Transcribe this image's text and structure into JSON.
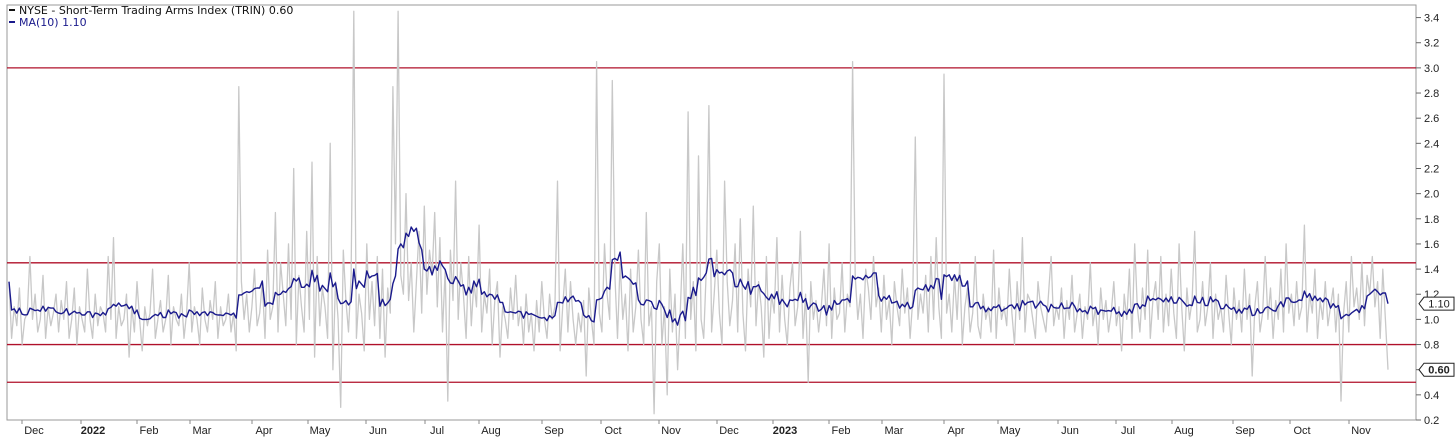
{
  "chart_data": {
    "type": "line",
    "title": "",
    "xlabel": "",
    "ylabel": "",
    "ylim": [
      0.2,
      3.5
    ],
    "y_ticks": [
      "0.2",
      "0.4",
      "0.6",
      "0.8",
      "1.0",
      "1.2",
      "1.4",
      "1.6",
      "1.8",
      "2.0",
      "2.2",
      "2.4",
      "2.6",
      "2.8",
      "3.0",
      "3.2",
      "3.4"
    ],
    "x_labels": [
      {
        "text": "Dec",
        "bold": false
      },
      {
        "text": "2022",
        "bold": true
      },
      {
        "text": "Feb",
        "bold": false
      },
      {
        "text": "Mar",
        "bold": false
      },
      {
        "text": "Apr",
        "bold": false
      },
      {
        "text": "May",
        "bold": false
      },
      {
        "text": "Jun",
        "bold": false
      },
      {
        "text": "Jul",
        "bold": false
      },
      {
        "text": "Aug",
        "bold": false
      },
      {
        "text": "Sep",
        "bold": false
      },
      {
        "text": "Oct",
        "bold": false
      },
      {
        "text": "Nov",
        "bold": false
      },
      {
        "text": "Dec",
        "bold": false
      },
      {
        "text": "2023",
        "bold": true
      },
      {
        "text": "Feb",
        "bold": false
      },
      {
        "text": "Mar",
        "bold": false
      },
      {
        "text": "Apr",
        "bold": false
      },
      {
        "text": "May",
        "bold": false
      },
      {
        "text": "Jun",
        "bold": false
      },
      {
        "text": "Jul",
        "bold": false
      },
      {
        "text": "Aug",
        "bold": false
      },
      {
        "text": "Sep",
        "bold": false
      },
      {
        "text": "Oct",
        "bold": false
      },
      {
        "text": "Nov",
        "bold": false
      }
    ],
    "reference_lines": [
      3.0,
      1.45,
      0.8,
      0.5
    ],
    "legend": [
      {
        "label": "NYSE - Short-Term Trading Arms Index (TRIN) 0.60",
        "color": "#999999"
      },
      {
        "label": "MA(10) 1.10",
        "color": "#1a1a8c"
      }
    ],
    "last_value_badges": [
      "1.10",
      "0.60"
    ],
    "series": [
      {
        "name": "NYSE - Short-Term Trading Arms Index (TRIN)",
        "color": "#c8c8c8",
        "values": [
          1.3,
          0.85,
          1.1,
          0.95,
          1.25,
          0.8,
          1.0,
          1.05,
          1.5,
          1.0,
          1.2,
          0.9,
          1.0,
          1.35,
          0.85,
          1.1,
          0.95,
          1.05,
          1.2,
          0.9,
          1.15,
          1.0,
          1.3,
          0.85,
          1.0,
          1.25,
          0.8,
          1.1,
          1.0,
          0.9,
          1.4,
          1.0,
          0.85,
          1.2,
          0.95,
          1.1,
          1.05,
          0.9,
          1.5,
          1.0,
          1.65,
          0.85,
          1.1,
          0.95,
          1.0,
          1.2,
          0.7,
          1.1,
          0.9,
          1.3,
          1.0,
          0.75,
          1.1,
          0.95,
          1.05,
          1.4,
          0.85,
          1.0,
          1.15,
          0.9,
          1.0,
          1.35,
          0.8,
          1.1,
          1.0,
          0.95,
          1.2,
          0.85,
          1.05,
          1.45,
          0.9,
          1.1,
          1.0,
          0.8,
          1.25,
          1.0,
          0.9,
          1.15,
          1.0,
          1.3,
          0.85,
          1.1,
          0.95,
          1.0,
          1.2,
          0.9,
          1.05,
          0.75,
          2.85,
          1.3,
          1.0,
          1.2,
          0.9,
          1.1,
          1.4,
          0.95,
          1.05,
          1.3,
          0.85,
          1.55,
          1.0,
          1.1,
          1.85,
          0.9,
          1.45,
          1.2,
          0.95,
          1.6,
          1.0,
          2.2,
          0.8,
          1.35,
          1.1,
          0.9,
          1.7,
          1.0,
          2.25,
          0.7,
          1.5,
          0.95,
          1.25,
          1.1,
          0.85,
          2.4,
          0.6,
          1.3,
          1.0,
          0.3,
          1.55,
          1.15,
          0.9,
          1.35,
          3.45,
          0.85,
          1.2,
          1.05,
          0.75,
          1.6,
          1.0,
          1.3,
          0.95,
          1.5,
          0.85,
          1.4,
          0.7,
          1.25,
          1.05,
          2.85,
          1.6,
          3.45,
          1.35,
          1.2,
          2.0,
          1.15,
          1.45,
          0.9,
          1.3,
          1.7,
          1.05,
          1.9,
          1.2,
          1.55,
          1.35,
          1.85,
          1.1,
          1.65,
          0.9,
          1.4,
          0.35,
          1.55,
          1.15,
          2.1,
          1.0,
          1.45,
          1.2,
          0.85,
          1.5,
          0.95,
          1.3,
          1.1,
          1.75,
          0.9,
          1.2,
          1.05,
          1.4,
          0.8,
          1.15,
          1.3,
          0.7,
          1.1,
          1.0,
          0.85,
          1.25,
          1.0,
          1.35,
          0.95,
          1.1,
          0.8,
          1.2,
          0.9,
          1.05,
          0.75,
          1.15,
          0.9,
          1.3,
          1.0,
          0.85,
          1.2,
          1.0,
          1.1,
          2.1,
          0.75,
          1.1,
          1.4,
          0.9,
          1.3,
          1.0,
          0.8,
          1.05,
          0.9,
          1.15,
          0.55,
          1.25,
          1.0,
          0.8,
          3.05,
          1.05,
          0.9,
          1.6,
          1.2,
          1.0,
          2.9,
          1.35,
          0.85,
          1.45,
          1.0,
          1.2,
          0.75,
          1.4,
          0.9,
          1.1,
          1.55,
          1.0,
          0.8,
          1.85,
          0.95,
          1.1,
          0.25,
          1.3,
          1.6,
          0.8,
          1.1,
          0.4,
          1.4,
          0.9,
          1.2,
          0.6,
          1.05,
          1.6,
          0.85,
          2.65,
          1.0,
          1.3,
          0.75,
          2.3,
          1.0,
          0.85,
          1.4,
          2.7,
          0.9,
          1.2,
          1.55,
          1.05,
          0.8,
          2.1,
          1.3,
          0.95,
          1.15,
          1.6,
          0.9,
          1.8,
          1.05,
          0.75,
          1.4,
          1.1,
          1.9,
          0.95,
          1.3,
          1.1,
          0.7,
          1.5,
          0.85,
          1.2,
          1.05,
          1.65,
          0.9,
          1.35,
          1.0,
          0.8,
          1.25,
          1.45,
          0.95,
          1.1,
          1.7,
          0.85,
          1.2,
          0.5,
          1.3,
          1.0,
          1.15,
          0.9,
          1.1,
          1.4,
          0.95,
          1.6,
          0.85,
          1.25,
          1.0,
          1.05,
          1.45,
          0.9,
          1.2,
          1.1,
          3.05,
          1.35,
          1.0,
          1.2,
          0.85,
          1.4,
          1.25,
          1.0,
          1.5,
          1.1,
          1.25,
          0.9,
          1.35,
          1.0,
          1.15,
          0.8,
          1.3,
          1.1,
          0.95,
          1.4,
          1.05,
          1.25,
          0.85,
          1.15,
          2.45,
          1.0,
          1.2,
          1.05,
          1.35,
          0.9,
          1.5,
          1.0,
          1.65,
          1.1,
          0.85,
          2.95,
          1.05,
          1.2,
          0.9,
          1.35,
          1.0,
          1.45,
          0.8,
          1.1,
          1.25,
          0.9,
          1.05,
          1.5,
          0.95,
          0.85,
          1.2,
          1.0,
          1.1,
          0.9,
          1.55,
          0.85,
          1.25,
          1.0,
          1.1,
          0.95,
          1.4,
          1.05,
          0.8,
          1.3,
          1.0,
          1.65,
          0.9,
          1.2,
          1.15,
          1.0,
          0.85,
          1.3,
          1.1,
          1.0,
          0.9,
          1.2,
          1.5,
          0.95,
          1.1,
          1.0,
          1.25,
          0.85,
          1.15,
          1.0,
          1.35,
          0.9,
          1.05,
          1.2,
          0.85,
          1.1,
          1.0,
          1.45,
          0.95,
          1.1,
          0.8,
          1.25,
          1.0,
          1.15,
          0.9,
          1.05,
          1.3,
          0.95,
          1.1,
          0.75,
          1.2,
          1.0,
          1.4,
          0.85,
          1.6,
          1.1,
          0.9,
          1.25,
          1.0,
          1.55,
          0.85,
          1.15,
          1.3,
          1.0,
          1.5,
          0.9,
          1.2,
          0.95,
          1.4,
          1.05,
          0.85,
          1.6,
          1.1,
          0.75,
          1.25,
          1.0,
          1.15,
          1.7,
          0.9,
          1.0,
          1.3,
          0.95,
          1.1,
          1.45,
          0.85,
          1.2,
          1.0,
          1.1,
          0.9,
          1.35,
          1.05,
          0.8,
          1.25,
          1.0,
          1.15,
          0.9,
          1.4,
          1.0,
          1.2,
          0.55,
          1.1,
          1.3,
          0.9,
          1.05,
          1.5,
          1.0,
          1.25,
          0.85,
          1.15,
          1.0,
          1.4,
          0.9,
          1.6,
          1.05,
          1.2,
          0.95,
          1.3,
          1.0,
          1.1,
          1.75,
          0.9,
          1.2,
          1.05,
          1.4,
          0.85,
          1.15,
          1.0,
          1.3,
          0.95,
          1.1,
          1.25,
          0.9,
          1.2,
          0.35,
          1.05,
          1.3,
          0.9,
          1.5,
          1.1,
          1.25,
          1.0,
          1.45,
          0.95,
          1.35,
          1.2,
          1.5,
          1.1,
          1.3,
          0.85,
          1.4,
          1.0,
          0.6
        ]
      },
      {
        "name": "MA(10)",
        "color": "#1a1a8c",
        "values": []
      }
    ]
  }
}
